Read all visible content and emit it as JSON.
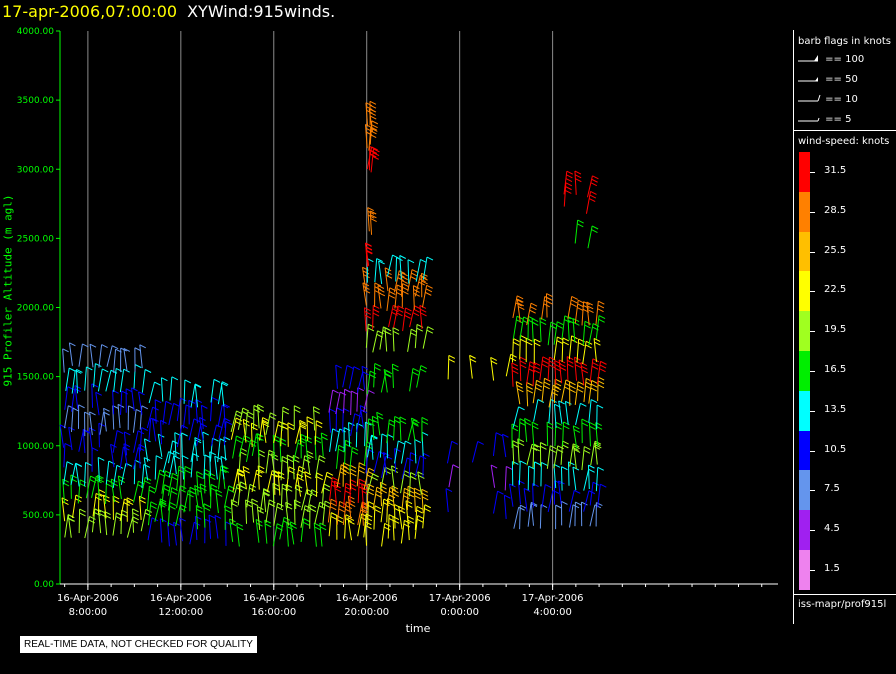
{
  "header": {
    "timestamp": "17-apr-2006,07:00:00",
    "name": "XYWind:915winds."
  },
  "notice": "REAL-TIME DATA, NOT CHECKED FOR QUALITY",
  "legend": {
    "flags_title": "barb flags in knots",
    "flags": [
      {
        "label": "== 100",
        "kind": "triangle"
      },
      {
        "label": "== 50",
        "kind": "flag"
      },
      {
        "label": "== 10",
        "kind": "long"
      },
      {
        "label": "== 5",
        "kind": "short"
      }
    ],
    "speed_title": "wind-speed: knots",
    "colorbar": [
      {
        "label": "31.5",
        "color": "#ff0000"
      },
      {
        "label": "28.5",
        "color": "#ff8000"
      },
      {
        "label": "25.5",
        "color": "#ffbf00"
      },
      {
        "label": "22.5",
        "color": "#ffff00"
      },
      {
        "label": "19.5",
        "color": "#a0ff20"
      },
      {
        "label": "16.5",
        "color": "#00ee00"
      },
      {
        "label": "13.5",
        "color": "#00ffff"
      },
      {
        "label": "10.5",
        "color": "#0000ff"
      },
      {
        "label": "7.5",
        "color": "#6495ed"
      },
      {
        "label": "4.5",
        "color": "#a020f0"
      },
      {
        "label": "1.5",
        "color": "#ee82ee"
      }
    ],
    "source": "iss-mapr/prof915l"
  },
  "chart_data": {
    "type": "scatter",
    "ylabel": "915 Profiler Altitude (m agl)",
    "xlabel": "time",
    "ylim": [
      0,
      4000
    ],
    "yticks": [
      "0.00",
      "500.00",
      "1000.00",
      "1500.00",
      "2000.00",
      "2500.00",
      "3000.00",
      "3500.00",
      "4000.00"
    ],
    "xlim_hours": [
      6.8,
      37.7
    ],
    "xticks": [
      {
        "date": "16-Apr-2006",
        "time": "8:00:00",
        "hour": 8
      },
      {
        "date": "16-Apr-2006",
        "time": "12:00:00",
        "hour": 12
      },
      {
        "date": "16-Apr-2006",
        "time": "16:00:00",
        "hour": 16
      },
      {
        "date": "16-Apr-2006",
        "time": "20:00:00",
        "hour": 20
      },
      {
        "date": "17-Apr-2006",
        "time": "0:00:00",
        "hour": 24
      },
      {
        "date": "17-Apr-2006",
        "time": "4:00:00",
        "hour": 28
      }
    ],
    "grid": "vertical lines at major x ticks",
    "marker": "wind barbs colored by wind speed (knots)",
    "profile_groups": [
      {
        "hours": [
          7.0,
          7.3,
          7.6,
          7.9,
          8.2,
          8.5,
          8.8,
          9.1,
          9.4,
          9.7,
          10.0,
          10.3
        ],
        "altitudes": [
          360,
          480,
          600,
          720,
          840,
          960,
          1100,
          1250,
          1400,
          1550
        ],
        "speeds": [
          19.5,
          22.5,
          16.5,
          13.5,
          10.5,
          10.5,
          7.5,
          10.5,
          13.5,
          7.5
        ]
      },
      {
        "hours": [
          10.6,
          10.9,
          11.2,
          11.5,
          11.8,
          12.1,
          12.4,
          12.7,
          13.0,
          13.3,
          13.6,
          13.9
        ],
        "altitudes": [
          300,
          420,
          540,
          660,
          780,
          900,
          1020,
          1150,
          1300
        ],
        "speeds": [
          10.5,
          16.5,
          16.5,
          16.5,
          13.5,
          13.5,
          10.5,
          10.5,
          13.5
        ]
      },
      {
        "hours": [
          14.2,
          14.5,
          14.8,
          15.1,
          15.4,
          15.7,
          16.0,
          16.3,
          16.6,
          16.9,
          17.2,
          17.5,
          17.8,
          18.1
        ],
        "altitudes": [
          300,
          420,
          540,
          660,
          780,
          900,
          1020,
          1100
        ],
        "speeds": [
          16.5,
          19.5,
          19.5,
          22.5,
          19.5,
          16.5,
          22.5,
          19.5
        ]
      },
      {
        "hours": [
          18.4,
          18.7,
          19.0,
          19.3,
          19.6,
          19.9
        ],
        "altitudes": [
          320,
          450,
          580,
          710,
          840,
          970,
          1100,
          1250,
          1400
        ],
        "speeds": [
          22.5,
          28.5,
          31.5,
          25.5,
          16.5,
          13.5,
          10.5,
          4.5,
          10.5
        ]
      },
      {
        "hours": [
          20.0,
          20.3,
          20.6,
          20.9,
          21.2,
          21.5,
          21.8,
          22.1,
          22.4
        ],
        "altitudes": [
          300,
          420,
          540,
          660,
          780,
          900,
          1050,
          1400,
          1700,
          1850,
          2000,
          2100,
          2200
        ],
        "speeds": [
          22.5,
          22.5,
          25.5,
          19.5,
          10.5,
          13.5,
          16.5,
          16.5,
          19.5,
          31.5,
          28.5,
          28.5,
          13.5
        ]
      },
      {
        "hours": [
          20.0,
          20.1,
          20.2
        ],
        "altitudes": [
          2300,
          2550,
          3000,
          3150,
          3300
        ],
        "speeds": [
          31.5,
          28.5,
          31.5,
          28.5,
          28.5
        ]
      },
      {
        "hours": [
          23.5,
          24.5,
          25.5,
          26.0
        ],
        "altitudes": [
          500,
          700,
          900,
          1500
        ],
        "speeds": [
          10.5,
          4.5,
          10.5,
          22.5
        ]
      },
      {
        "hours": [
          26.3,
          26.6,
          26.9,
          27.2,
          27.5,
          27.8,
          28.1,
          28.4,
          28.7,
          29.0,
          29.3,
          29.6,
          29.9
        ],
        "altitudes": [
          400,
          550,
          700,
          850,
          1000,
          1150,
          1300,
          1450,
          1600,
          1750,
          1900
        ],
        "speeds": [
          7.5,
          10.5,
          13.5,
          19.5,
          16.5,
          13.5,
          25.5,
          31.5,
          22.5,
          16.5,
          28.5
        ]
      },
      {
        "hours": [
          28.5,
          29.0,
          29.5
        ],
        "altitudes": [
          2450,
          2700,
          2800
        ],
        "speeds": [
          16.5,
          31.5,
          31.5
        ]
      }
    ]
  }
}
